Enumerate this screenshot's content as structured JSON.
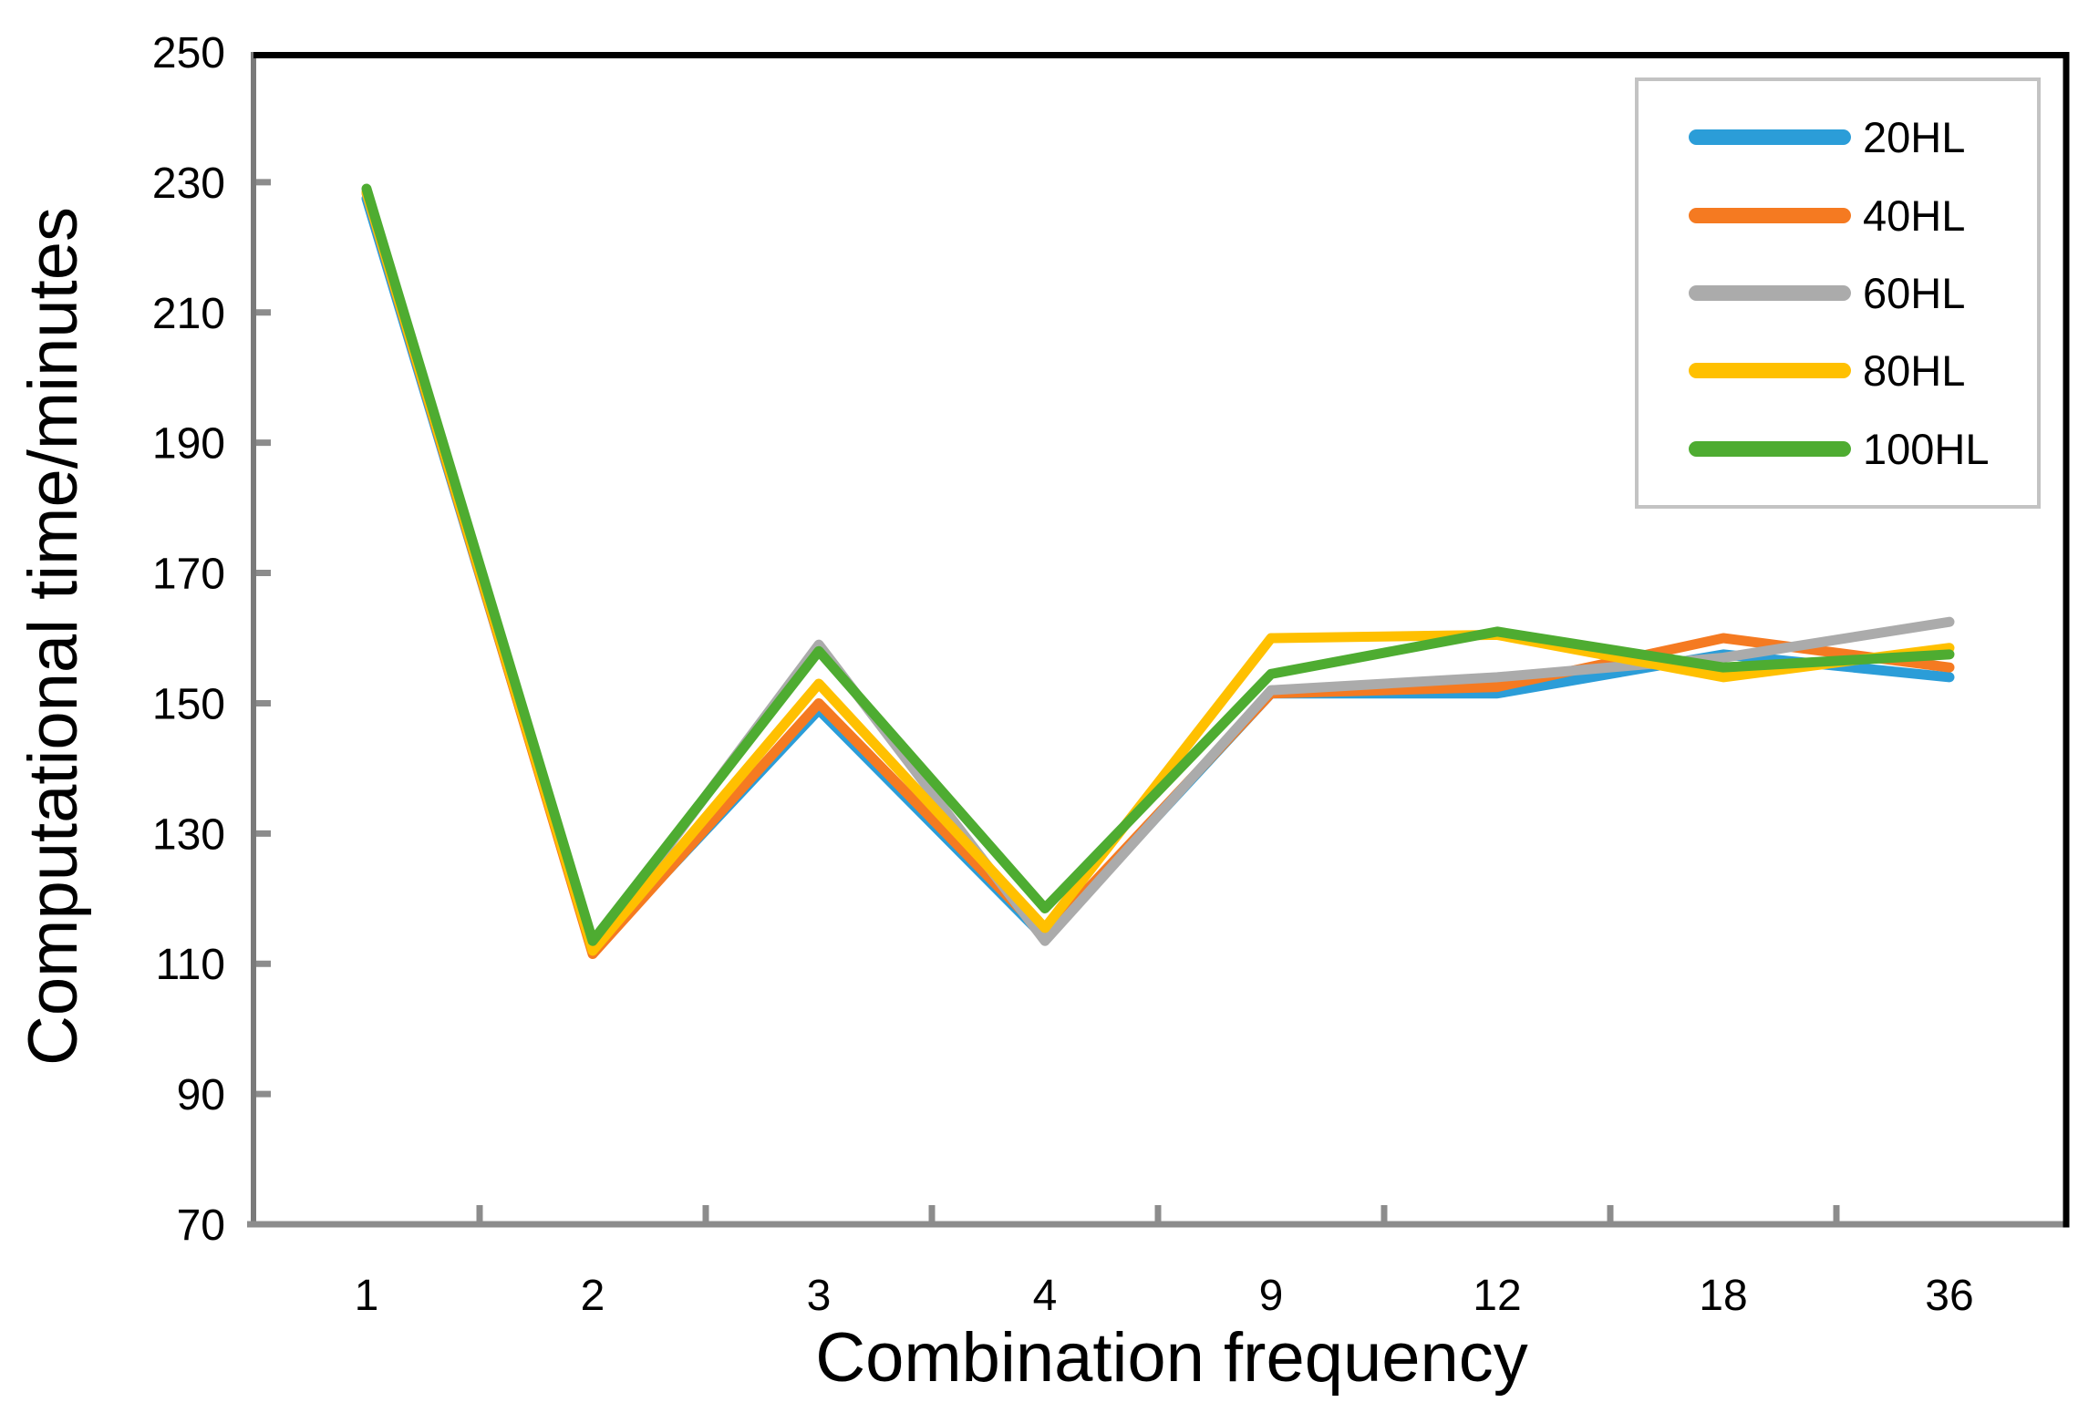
{
  "chart_data": {
    "type": "line",
    "title": "",
    "xlabel": "Combination frequency",
    "ylabel": "Computational time/minutes",
    "categories": [
      "1",
      "2",
      "3",
      "4",
      "9",
      "12",
      "18",
      "36"
    ],
    "ylim": [
      70,
      250
    ],
    "y_ticks": [
      250,
      230,
      210,
      190,
      170,
      150,
      130,
      110,
      90,
      70
    ],
    "grid": false,
    "legend_position": "top-right",
    "series": [
      {
        "name": "20HL",
        "color": "#2b9dd8",
        "values": [
          227.5,
          112.0,
          149.0,
          114.0,
          151.5,
          151.5,
          157.5,
          154.0
        ]
      },
      {
        "name": "40HL",
        "color": "#f57a21",
        "values": [
          228.3,
          111.5,
          150.0,
          114.5,
          151.5,
          152.5,
          160.0,
          155.5
        ]
      },
      {
        "name": "60HL",
        "color": "#ababab",
        "values": [
          228.4,
          112.5,
          159.0,
          113.5,
          152.0,
          154.0,
          157.0,
          162.5
        ]
      },
      {
        "name": "80HL",
        "color": "#ffc000",
        "values": [
          228.5,
          112.0,
          153.0,
          115.5,
          160.0,
          160.5,
          154.0,
          158.5
        ]
      },
      {
        "name": "100HL",
        "color": "#4eac31",
        "values": [
          229.0,
          113.5,
          158.0,
          118.5,
          154.5,
          161.0,
          155.5,
          157.5
        ]
      }
    ],
    "style": {
      "line_width": 11,
      "axis_color": "#8c8c8c",
      "left_axis_color": "#7a7a7a",
      "border_color": "#000000",
      "tick_color": "#8c8c8c",
      "legend_border_color": "#c3c3c3",
      "background": "#ffffff"
    }
  }
}
